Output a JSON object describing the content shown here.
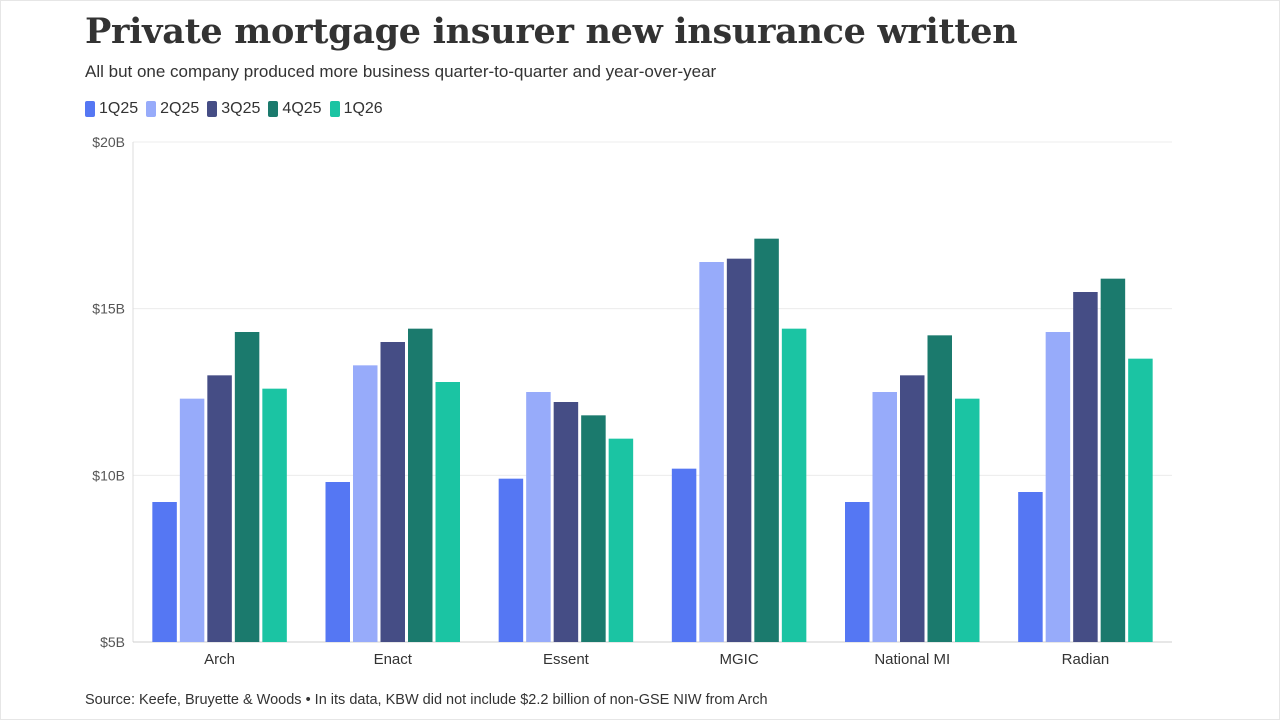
{
  "title": "Private mortgage insurer new insurance written",
  "subtitle": "All but one company produced more business quarter-to-quarter and year-over-year",
  "source": "Source: Keefe, Bruyette & Woods • In its data, KBW did not include $2.2 billion of non-GSE NIW from Arch",
  "chart_data": {
    "type": "bar",
    "title": "Private mortgage insurer new insurance written",
    "subtitle": "All but one company produced more business quarter-to-quarter and year-over-year",
    "xlabel": "",
    "ylabel": "",
    "categories": [
      "Arch",
      "Enact",
      "Essent",
      "MGIC",
      "National MI",
      "Radian"
    ],
    "series": [
      {
        "name": "1Q25",
        "color": "#5577f3",
        "values": [
          9.2,
          9.8,
          9.9,
          10.2,
          9.2,
          9.5
        ]
      },
      {
        "name": "2Q25",
        "color": "#97abfa",
        "values": [
          12.3,
          13.3,
          12.5,
          16.4,
          12.5,
          14.3
        ]
      },
      {
        "name": "3Q25",
        "color": "#454d85",
        "values": [
          13.0,
          14.0,
          12.2,
          16.5,
          13.0,
          15.5
        ]
      },
      {
        "name": "4Q25",
        "color": "#1b7a6d",
        "values": [
          14.3,
          14.4,
          11.8,
          17.1,
          14.2,
          15.9
        ]
      },
      {
        "name": "1Q26",
        "color": "#1bc4a3",
        "values": [
          12.6,
          12.8,
          11.1,
          14.4,
          12.3,
          13.5
        ]
      }
    ],
    "ylim": [
      5,
      20
    ],
    "yticks": [
      5,
      10,
      15,
      20
    ],
    "ytick_labels": [
      "$5B",
      "$10B",
      "$15B",
      "$20B"
    ],
    "grid": true,
    "legend_position": "top-left"
  }
}
